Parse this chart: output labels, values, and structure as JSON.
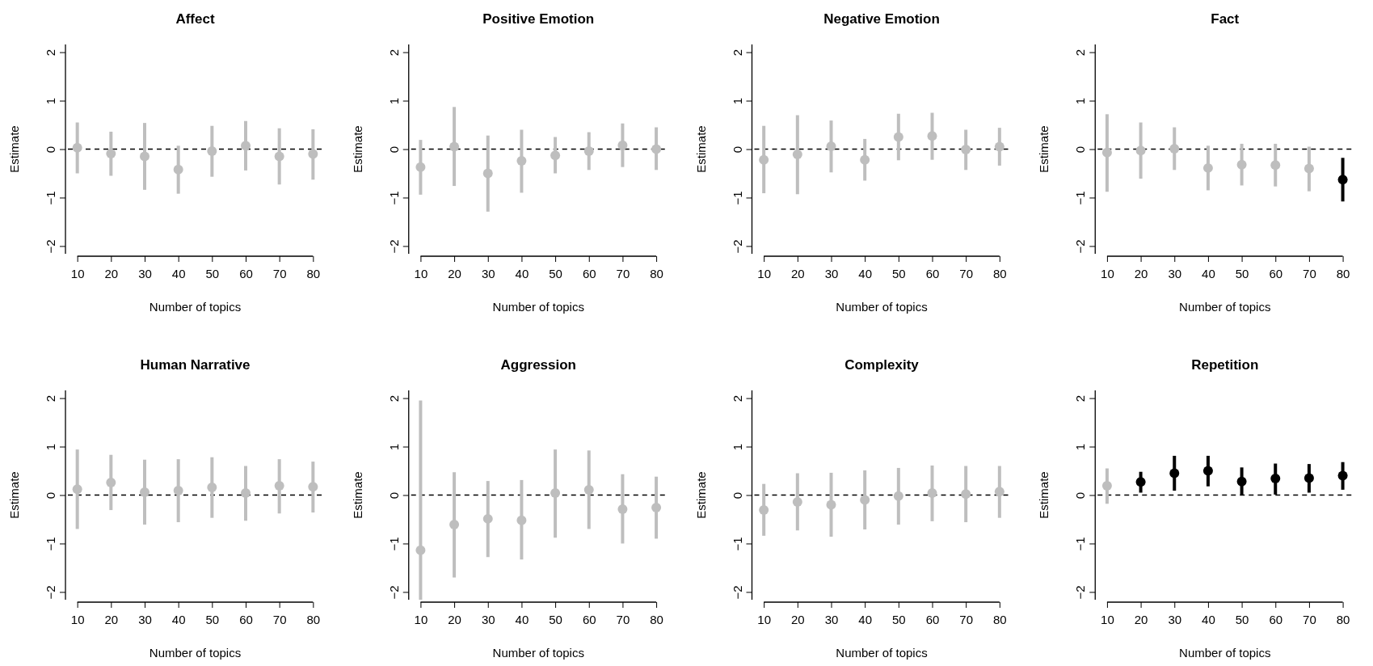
{
  "chart_data": [
    {
      "type": "scatter",
      "title": "Affect",
      "xlabel": "Number of topics",
      "ylabel": "Estimate",
      "x": [
        10,
        20,
        30,
        40,
        50,
        60,
        70,
        80
      ],
      "values": [
        0.03,
        -0.09,
        -0.15,
        -0.42,
        -0.04,
        0.07,
        -0.15,
        -0.1
      ],
      "errors": [
        [
          -0.5,
          0.55
        ],
        [
          -0.55,
          0.36
        ],
        [
          -0.84,
          0.54
        ],
        [
          -0.92,
          0.07
        ],
        [
          -0.57,
          0.48
        ],
        [
          -0.44,
          0.58
        ],
        [
          -0.73,
          0.43
        ],
        [
          -0.63,
          0.41
        ]
      ],
      "colors": [
        "#bebebe",
        "#bebebe",
        "#bebebe",
        "#bebebe",
        "#bebebe",
        "#bebebe",
        "#bebebe",
        "#bebebe"
      ],
      "marker": "circle",
      "xlim": [
        7.2,
        82.8
      ],
      "ylim": [
        -2.16,
        2.16
      ],
      "xticks": [
        10,
        20,
        30,
        40,
        50,
        60,
        70,
        80
      ],
      "yticks": [
        -2,
        -1,
        0,
        1,
        2
      ],
      "ref_lines": [
        {
          "axis": "y",
          "value": 0,
          "color": "#000000",
          "line_style": "dashed"
        }
      ]
    },
    {
      "type": "scatter",
      "title": "Positive Emotion",
      "xlabel": "Number of topics",
      "ylabel": "Estimate",
      "x": [
        10,
        20,
        30,
        40,
        50,
        60,
        70,
        80
      ],
      "values": [
        -0.37,
        0.05,
        -0.5,
        -0.24,
        -0.13,
        -0.04,
        0.08,
        0.0
      ],
      "errors": [
        [
          -0.94,
          0.19
        ],
        [
          -0.76,
          0.87
        ],
        [
          -1.29,
          0.28
        ],
        [
          -0.9,
          0.4
        ],
        [
          -0.5,
          0.25
        ],
        [
          -0.43,
          0.35
        ],
        [
          -0.37,
          0.53
        ],
        [
          -0.43,
          0.45
        ]
      ],
      "colors": [
        "#bebebe",
        "#bebebe",
        "#bebebe",
        "#bebebe",
        "#bebebe",
        "#bebebe",
        "#bebebe",
        "#bebebe"
      ],
      "marker": "circle",
      "xlim": [
        7.2,
        82.8
      ],
      "ylim": [
        -2.16,
        2.16
      ],
      "xticks": [
        10,
        20,
        30,
        40,
        50,
        60,
        70,
        80
      ],
      "yticks": [
        -2,
        -1,
        0,
        1,
        2
      ],
      "ref_lines": [
        {
          "axis": "y",
          "value": 0,
          "color": "#000000",
          "line_style": "dashed"
        }
      ]
    },
    {
      "type": "scatter",
      "title": "Negative Emotion",
      "xlabel": "Number of topics",
      "ylabel": "Estimate",
      "x": [
        10,
        20,
        30,
        40,
        50,
        60,
        70,
        80
      ],
      "values": [
        -0.22,
        -0.11,
        0.06,
        -0.22,
        0.25,
        0.27,
        -0.01,
        0.05
      ],
      "errors": [
        [
          -0.91,
          0.48
        ],
        [
          -0.93,
          0.7
        ],
        [
          -0.48,
          0.59
        ],
        [
          -0.65,
          0.21
        ],
        [
          -0.23,
          0.73
        ],
        [
          -0.22,
          0.75
        ],
        [
          -0.43,
          0.4
        ],
        [
          -0.34,
          0.44
        ]
      ],
      "colors": [
        "#bebebe",
        "#bebebe",
        "#bebebe",
        "#bebebe",
        "#bebebe",
        "#bebebe",
        "#bebebe",
        "#bebebe"
      ],
      "marker": "circle",
      "xlim": [
        7.2,
        82.8
      ],
      "ylim": [
        -2.16,
        2.16
      ],
      "xticks": [
        10,
        20,
        30,
        40,
        50,
        60,
        70,
        80
      ],
      "yticks": [
        -2,
        -1,
        0,
        1,
        2
      ],
      "ref_lines": [
        {
          "axis": "y",
          "value": 0,
          "color": "#000000",
          "line_style": "dashed"
        }
      ]
    },
    {
      "type": "scatter",
      "title": "Fact",
      "xlabel": "Number of topics",
      "ylabel": "Estimate",
      "x": [
        10,
        20,
        30,
        40,
        50,
        60,
        70,
        80
      ],
      "values": [
        -0.07,
        -0.03,
        0.01,
        -0.39,
        -0.32,
        -0.33,
        -0.4,
        -0.63
      ],
      "errors": [
        [
          -0.88,
          0.72
        ],
        [
          -0.61,
          0.55
        ],
        [
          -0.43,
          0.45
        ],
        [
          -0.85,
          0.07
        ],
        [
          -0.75,
          0.11
        ],
        [
          -0.77,
          0.11
        ],
        [
          -0.87,
          0.05
        ],
        [
          -1.08,
          -0.18
        ]
      ],
      "colors": [
        "#bebebe",
        "#bebebe",
        "#bebebe",
        "#bebebe",
        "#bebebe",
        "#bebebe",
        "#bebebe",
        "#000000"
      ],
      "marker": "circle",
      "xlim": [
        7.2,
        82.8
      ],
      "ylim": [
        -2.16,
        2.16
      ],
      "xticks": [
        10,
        20,
        30,
        40,
        50,
        60,
        70,
        80
      ],
      "yticks": [
        -2,
        -1,
        0,
        1,
        2
      ],
      "ref_lines": [
        {
          "axis": "y",
          "value": 0,
          "color": "#000000",
          "line_style": "dashed"
        }
      ]
    },
    {
      "type": "scatter",
      "title": "Human Narrative",
      "xlabel": "Number of topics",
      "ylabel": "Estimate",
      "x": [
        10,
        20,
        30,
        40,
        50,
        60,
        70,
        80
      ],
      "values": [
        0.12,
        0.26,
        0.06,
        0.09,
        0.16,
        0.04,
        0.19,
        0.17
      ],
      "errors": [
        [
          -0.7,
          0.94
        ],
        [
          -0.31,
          0.83
        ],
        [
          -0.61,
          0.73
        ],
        [
          -0.56,
          0.74
        ],
        [
          -0.47,
          0.78
        ],
        [
          -0.53,
          0.6
        ],
        [
          -0.38,
          0.74
        ],
        [
          -0.36,
          0.69
        ]
      ],
      "colors": [
        "#bebebe",
        "#bebebe",
        "#bebebe",
        "#bebebe",
        "#bebebe",
        "#bebebe",
        "#bebebe",
        "#bebebe"
      ],
      "marker": "circle",
      "xlim": [
        7.2,
        82.8
      ],
      "ylim": [
        -2.16,
        2.16
      ],
      "xticks": [
        10,
        20,
        30,
        40,
        50,
        60,
        70,
        80
      ],
      "yticks": [
        -2,
        -1,
        0,
        1,
        2
      ],
      "ref_lines": [
        {
          "axis": "y",
          "value": 0,
          "color": "#000000",
          "line_style": "dashed"
        }
      ]
    },
    {
      "type": "scatter",
      "title": "Aggression",
      "xlabel": "Number of topics",
      "ylabel": "Estimate",
      "x": [
        10,
        20,
        30,
        40,
        50,
        60,
        70,
        80
      ],
      "values": [
        -1.14,
        -0.61,
        -0.49,
        -0.52,
        0.04,
        0.11,
        -0.29,
        -0.26
      ],
      "errors": [
        [
          -2.16,
          1.95
        ],
        [
          -1.7,
          0.47
        ],
        [
          -1.28,
          0.29
        ],
        [
          -1.33,
          0.31
        ],
        [
          -0.88,
          0.94
        ],
        [
          -0.7,
          0.92
        ],
        [
          -1.0,
          0.43
        ],
        [
          -0.9,
          0.38
        ]
      ],
      "colors": [
        "#bebebe",
        "#bebebe",
        "#bebebe",
        "#bebebe",
        "#bebebe",
        "#bebebe",
        "#bebebe",
        "#bebebe"
      ],
      "marker": "circle",
      "xlim": [
        7.2,
        82.8
      ],
      "ylim": [
        -2.16,
        2.16
      ],
      "xticks": [
        10,
        20,
        30,
        40,
        50,
        60,
        70,
        80
      ],
      "yticks": [
        -2,
        -1,
        0,
        1,
        2
      ],
      "ref_lines": [
        {
          "axis": "y",
          "value": 0,
          "color": "#000000",
          "line_style": "dashed"
        }
      ]
    },
    {
      "type": "scatter",
      "title": "Complexity",
      "xlabel": "Number of topics",
      "ylabel": "Estimate",
      "x": [
        10,
        20,
        30,
        40,
        50,
        60,
        70,
        80
      ],
      "values": [
        -0.31,
        -0.14,
        -0.2,
        -0.1,
        -0.02,
        0.04,
        0.02,
        0.07
      ],
      "errors": [
        [
          -0.84,
          0.23
        ],
        [
          -0.73,
          0.45
        ],
        [
          -0.86,
          0.46
        ],
        [
          -0.71,
          0.51
        ],
        [
          -0.61,
          0.56
        ],
        [
          -0.54,
          0.61
        ],
        [
          -0.56,
          0.6
        ],
        [
          -0.47,
          0.6
        ]
      ],
      "colors": [
        "#bebebe",
        "#bebebe",
        "#bebebe",
        "#bebebe",
        "#bebebe",
        "#bebebe",
        "#bebebe",
        "#bebebe"
      ],
      "marker": "circle",
      "xlim": [
        7.2,
        82.8
      ],
      "ylim": [
        -2.16,
        2.16
      ],
      "xticks": [
        10,
        20,
        30,
        40,
        50,
        60,
        70,
        80
      ],
      "yticks": [
        -2,
        -1,
        0,
        1,
        2
      ],
      "ref_lines": [
        {
          "axis": "y",
          "value": 0,
          "color": "#000000",
          "line_style": "dashed"
        }
      ]
    },
    {
      "type": "scatter",
      "title": "Repetition",
      "xlabel": "Number of topics",
      "ylabel": "Estimate",
      "x": [
        10,
        20,
        30,
        40,
        50,
        60,
        70,
        80
      ],
      "values": [
        0.19,
        0.27,
        0.45,
        0.5,
        0.28,
        0.34,
        0.35,
        0.4
      ],
      "errors": [
        [
          -0.18,
          0.55
        ],
        [
          0.05,
          0.48
        ],
        [
          0.09,
          0.81
        ],
        [
          0.18,
          0.81
        ],
        [
          0.0,
          0.57
        ],
        [
          0.01,
          0.65
        ],
        [
          0.05,
          0.64
        ],
        [
          0.11,
          0.68
        ]
      ],
      "colors": [
        "#bebebe",
        "#000000",
        "#000000",
        "#000000",
        "#000000",
        "#000000",
        "#000000",
        "#000000"
      ],
      "marker": "circle",
      "xlim": [
        7.2,
        82.8
      ],
      "ylim": [
        -2.16,
        2.16
      ],
      "xticks": [
        10,
        20,
        30,
        40,
        50,
        60,
        70,
        80
      ],
      "yticks": [
        -2,
        -1,
        0,
        1,
        2
      ],
      "ref_lines": [
        {
          "axis": "y",
          "value": 0,
          "color": "#000000",
          "line_style": "dashed"
        }
      ]
    }
  ]
}
